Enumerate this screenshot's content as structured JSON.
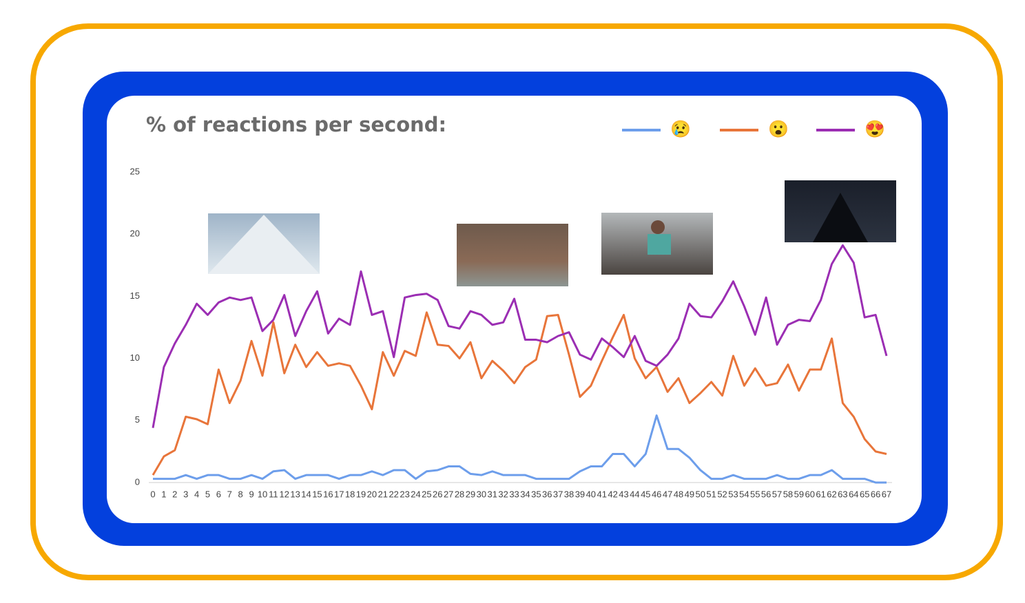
{
  "chart_data": {
    "type": "line",
    "title": "% of reactions per second:",
    "x": [
      0,
      1,
      2,
      3,
      4,
      5,
      6,
      7,
      8,
      9,
      10,
      11,
      12,
      13,
      14,
      15,
      16,
      17,
      18,
      19,
      20,
      21,
      22,
      23,
      24,
      25,
      26,
      27,
      28,
      29,
      30,
      31,
      32,
      33,
      34,
      35,
      36,
      37,
      38,
      39,
      40,
      41,
      42,
      43,
      44,
      45,
      46,
      47,
      48,
      49,
      50,
      51,
      52,
      53,
      54,
      55,
      56,
      57,
      58,
      59,
      60,
      61,
      62,
      63,
      64,
      65,
      66,
      67
    ],
    "xlim": [
      0,
      67
    ],
    "xticks": [
      0,
      1,
      2,
      3,
      4,
      5,
      6,
      7,
      8,
      9,
      10,
      11,
      12,
      13,
      14,
      15,
      16,
      17,
      18,
      19,
      20,
      21,
      22,
      23,
      24,
      25,
      26,
      27,
      28,
      29,
      30,
      31,
      32,
      33,
      34,
      35,
      36,
      37,
      38,
      39,
      40,
      41,
      42,
      43,
      44,
      45,
      46,
      47,
      48,
      49,
      50,
      51,
      52,
      53,
      54,
      55,
      56,
      57,
      58,
      59,
      60,
      61,
      62,
      63,
      64,
      65,
      66,
      67
    ],
    "ylim": [
      0,
      25
    ],
    "yticks": [
      0,
      5,
      10,
      15,
      20,
      25
    ],
    "grid": false,
    "legend": "top-right",
    "series": [
      {
        "name": "😢",
        "color": "#6d9eeb",
        "values": [
          0.3,
          0.3,
          0.3,
          0.6,
          0.3,
          0.6,
          0.6,
          0.3,
          0.3,
          0.6,
          0.3,
          0.9,
          1.0,
          0.3,
          0.6,
          0.6,
          0.6,
          0.3,
          0.6,
          0.6,
          0.9,
          0.6,
          1.0,
          1.0,
          0.3,
          0.9,
          1.0,
          1.3,
          1.3,
          0.7,
          0.6,
          0.9,
          0.6,
          0.6,
          0.6,
          0.3,
          0.3,
          0.3,
          0.3,
          0.9,
          1.3,
          1.3,
          2.3,
          2.3,
          1.3,
          2.3,
          5.4,
          2.7,
          2.7,
          2.0,
          1.0,
          0.3,
          0.3,
          0.6,
          0.3,
          0.3,
          0.3,
          0.6,
          0.3,
          0.3,
          0.6,
          0.6,
          1.0,
          0.3,
          0.3,
          0.3,
          0,
          0
        ]
      },
      {
        "name": "😮",
        "color": "#e8753a",
        "values": [
          0.6,
          2.1,
          2.6,
          5.3,
          5.1,
          4.7,
          9.1,
          6.4,
          8.2,
          11.4,
          8.6,
          12.9,
          8.8,
          11.1,
          9.3,
          10.5,
          9.4,
          9.6,
          9.4,
          7.8,
          5.9,
          10.5,
          8.6,
          10.6,
          10.2,
          13.7,
          11.1,
          11.0,
          10.0,
          11.3,
          8.4,
          9.8,
          9.0,
          8.0,
          9.3,
          9.9,
          13.4,
          13.5,
          10.3,
          6.9,
          7.8,
          9.8,
          11.7,
          13.5,
          10.0,
          8.4,
          9.3,
          7.3,
          8.4,
          6.4,
          7.2,
          8.1,
          7.0,
          10.2,
          7.8,
          9.2,
          7.8,
          8.0,
          9.5,
          7.4,
          9.1,
          9.1,
          11.6,
          6.4,
          5.3,
          3.5,
          2.5,
          2.3
        ]
      },
      {
        "name": "😍",
        "color": "#9b2eb3",
        "values": [
          4.4,
          9.3,
          11.2,
          12.7,
          14.4,
          13.5,
          14.5,
          14.9,
          14.7,
          14.9,
          12.2,
          13.1,
          15.1,
          11.8,
          13.8,
          15.4,
          12.0,
          13.2,
          12.7,
          17.0,
          13.5,
          13.8,
          10.1,
          14.9,
          15.1,
          15.2,
          14.7,
          12.6,
          12.4,
          13.8,
          13.5,
          12.7,
          12.9,
          14.8,
          11.5,
          11.5,
          11.3,
          11.8,
          12.1,
          10.3,
          9.9,
          11.6,
          10.9,
          10.1,
          11.8,
          9.8,
          9.4,
          10.3,
          11.6,
          14.4,
          13.4,
          13.3,
          14.6,
          16.2,
          14.2,
          11.9,
          14.9,
          11.1,
          12.7,
          13.1,
          13.0,
          14.7,
          17.6,
          19.1,
          17.7,
          13.3,
          13.5,
          10.2
        ]
      }
    ]
  }
}
